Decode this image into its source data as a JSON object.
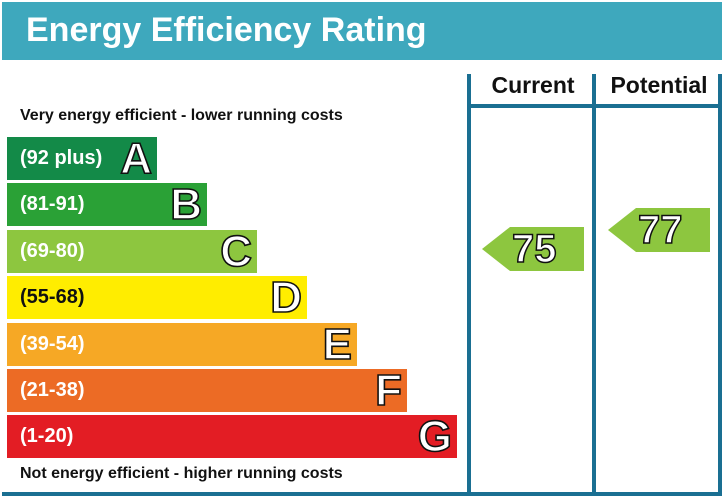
{
  "title": "Energy Efficiency Rating",
  "top_note": "Very energy efficient - lower running costs",
  "bottom_note": "Not energy efficient - higher running costs",
  "columns": {
    "current": "Current",
    "potential": "Potential"
  },
  "chart_data": {
    "type": "bar",
    "title": "Energy Efficiency Rating",
    "bands": [
      {
        "letter": "A",
        "range": "(92 plus)",
        "min": 92,
        "max": 100,
        "color": "#138a48"
      },
      {
        "letter": "B",
        "range": "(81-91)",
        "min": 81,
        "max": 91,
        "color": "#2aa136"
      },
      {
        "letter": "C",
        "range": "(69-80)",
        "min": 69,
        "max": 80,
        "color": "#8dc63f"
      },
      {
        "letter": "D",
        "range": "(55-68)",
        "min": 55,
        "max": 68,
        "color": "#ffed00"
      },
      {
        "letter": "E",
        "range": "(39-54)",
        "min": 39,
        "max": 54,
        "color": "#f6a825"
      },
      {
        "letter": "F",
        "range": "(21-38)",
        "min": 21,
        "max": 38,
        "color": "#ec6b25"
      },
      {
        "letter": "G",
        "range": "(1-20)",
        "min": 1,
        "max": 20,
        "color": "#e31d24"
      }
    ],
    "current": {
      "value": 75,
      "band": "C",
      "color": "#8dc63f"
    },
    "potential": {
      "value": 77,
      "band": "C",
      "color": "#8dc63f"
    }
  },
  "colors": {
    "header": "#3ea8bd",
    "lines": "#1a6f92"
  }
}
